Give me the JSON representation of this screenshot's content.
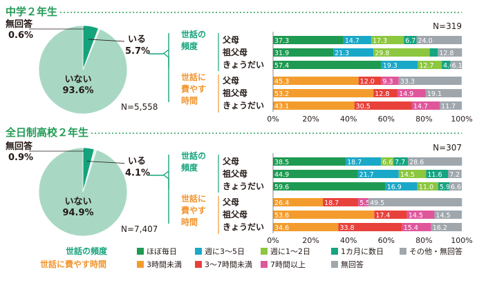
{
  "colors": {
    "title_green": "#239b56",
    "pie_main": "#a8d8c4",
    "pie_slice": "#14a37b",
    "pie_tiny": "#e8f3ee",
    "orange_label": "#f29530",
    "text": "#231815"
  },
  "legend": {
    "freq_title": "世話の頻度",
    "time_title": "世話に費やす時間",
    "freq_items": [
      {
        "label": "ほぼ毎日",
        "color": "#1f9a52"
      },
      {
        "label": "週に3〜5日",
        "color": "#1aa8c8"
      },
      {
        "label": "週に1〜2日",
        "color": "#8dc63f"
      },
      {
        "label": "1カ月に数日",
        "color": "#16a481"
      },
      {
        "label": "その他・無回答",
        "color": "#9fa7ad"
      }
    ],
    "time_items": [
      {
        "label": "3時間未満",
        "color": "#f39c2d"
      },
      {
        "label": "3〜7時間未満",
        "color": "#e8413b"
      },
      {
        "label": "7時間以上",
        "color": "#e0569b"
      },
      {
        "label": "無回答",
        "color": "#9fa7ad"
      }
    ]
  },
  "chart_data": [
    {
      "type": "pie",
      "title": "中学２年生",
      "n_label": "N=5,558",
      "slices": [
        {
          "name": "いない",
          "value": 93.6
        },
        {
          "name": "いる",
          "value": 5.7
        },
        {
          "name": "無回答",
          "value": 0.6
        }
      ]
    },
    {
      "type": "bar",
      "orientation": "horizontal",
      "stacked": true,
      "group_title": "中学２年生",
      "n_label": "N=319",
      "xlim": [
        0,
        100
      ],
      "x_ticks": [
        "0%",
        "20%",
        "40%",
        "60%",
        "80%",
        "100%"
      ],
      "sections": [
        {
          "label": "世話の頻度",
          "rows": [
            {
              "name": "父母",
              "values": [
                37.3,
                14.7,
                17.3,
                6.7,
                24.0
              ]
            },
            {
              "name": "祖父母",
              "values": [
                31.9,
                21.3,
                29.8,
                4.3,
                12.8
              ]
            },
            {
              "name": "きょうだい",
              "values": [
                57.4,
                19.3,
                12.7,
                4.6,
                6.1
              ]
            }
          ]
        },
        {
          "label": "世話に費やす時間",
          "rows": [
            {
              "name": "父母",
              "values": [
                45.3,
                12.0,
                9.3,
                33.3
              ]
            },
            {
              "name": "祖父母",
              "values": [
                53.2,
                12.8,
                14.9,
                19.1
              ]
            },
            {
              "name": "きょうだい",
              "values": [
                43.1,
                30.5,
                14.7,
                11.7
              ]
            }
          ]
        }
      ]
    },
    {
      "type": "pie",
      "title": "全日制高校２年生",
      "n_label": "N=7,407",
      "slices": [
        {
          "name": "いない",
          "value": 94.9
        },
        {
          "name": "いる",
          "value": 4.1
        },
        {
          "name": "無回答",
          "value": 0.9
        }
      ]
    },
    {
      "type": "bar",
      "orientation": "horizontal",
      "stacked": true,
      "group_title": "全日制高校２年生",
      "n_label": "N=307",
      "xlim": [
        0,
        100
      ],
      "x_ticks": [
        "0%",
        "20%",
        "40%",
        "60%",
        "80%",
        "100%"
      ],
      "sections": [
        {
          "label": "世話の頻度",
          "rows": [
            {
              "name": "父母",
              "values": [
                38.5,
                18.7,
                6.6,
                7.7,
                28.6
              ]
            },
            {
              "name": "祖父母",
              "values": [
                44.9,
                21.7,
                14.5,
                11.6,
                7.2
              ]
            },
            {
              "name": "きょうだい",
              "values": [
                59.6,
                16.9,
                11.0,
                5.9,
                6.6
              ]
            }
          ]
        },
        {
          "label": "世話に費やす時間",
          "rows": [
            {
              "name": "父母",
              "values": [
                26.4,
                18.7,
                5.5,
                49.5
              ]
            },
            {
              "name": "祖父母",
              "values": [
                53.6,
                17.4,
                14.5,
                14.5
              ]
            },
            {
              "name": "きょうだい",
              "values": [
                34.6,
                33.8,
                15.4,
                16.2
              ]
            }
          ]
        }
      ]
    }
  ]
}
